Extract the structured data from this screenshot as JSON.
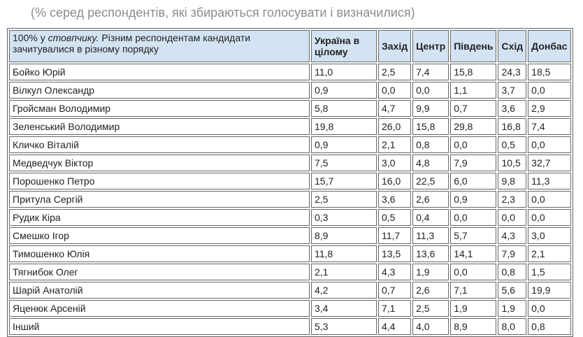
{
  "caption": "(% серед респондентів, які збираються голосувати і визначилися)",
  "table": {
    "header_note_plain": "100% у ",
    "header_note_italic": "стовпчику.",
    "header_note_rest": " Різним респондентам кандидати зачитувалися в різному порядку",
    "columns": [
      "Україна в цілому",
      "Захід",
      "Центр",
      "Південь",
      "Схід",
      "Донбас"
    ],
    "rows": [
      {
        "name": "Бойко Юрій",
        "values": [
          "11,0",
          "2,5",
          "7,4",
          "15,8",
          "24,3",
          "18,5"
        ]
      },
      {
        "name": "Вілкул Олександр",
        "values": [
          "0,9",
          "0,0",
          "0,0",
          "1,1",
          "3,7",
          "0,0"
        ]
      },
      {
        "name": "Гройсман Володимир",
        "values": [
          "5,8",
          "4,7",
          "9,9",
          "0,7",
          "3,6",
          "2,9"
        ]
      },
      {
        "name": "Зеленський Володимир",
        "values": [
          "19,8",
          "26,0",
          "15,8",
          "29,8",
          "16,8",
          "7,4"
        ]
      },
      {
        "name": "Кличко Віталій",
        "values": [
          "0,9",
          "2,1",
          "0,8",
          "0,0",
          "0,5",
          "0,0"
        ]
      },
      {
        "name": "Медведчук Віктор",
        "values": [
          "7,5",
          "3,0",
          "4,8",
          "7,9",
          "10,5",
          "32,7"
        ]
      },
      {
        "name": "Порошенко Петро",
        "values": [
          "15,7",
          "16,0",
          "22,5",
          "6,0",
          "9,8",
          "11,3"
        ]
      },
      {
        "name": "Притула Сергій",
        "values": [
          "2,5",
          "3,6",
          "2,6",
          "0,9",
          "2,3",
          "0,0"
        ]
      },
      {
        "name": "Рудик Кіра",
        "values": [
          "0,3",
          "0,5",
          "0,4",
          "0,0",
          "0,0",
          "0,0"
        ]
      },
      {
        "name": "Смешко Ігор",
        "values": [
          "8,9",
          "11,7",
          "11,3",
          "5,7",
          "4,3",
          "3,0"
        ]
      },
      {
        "name": "Тимошенко Юлія",
        "values": [
          "11,8",
          "13,5",
          "13,6",
          "14,1",
          "7,9",
          "2,1"
        ]
      },
      {
        "name": "Тягнибок Олег",
        "values": [
          "2,1",
          "4,3",
          "1,9",
          "0,0",
          "0,8",
          "1,5"
        ]
      },
      {
        "name": "Шарій Анатолій",
        "values": [
          "4,2",
          "0,7",
          "2,6",
          "7,1",
          "5,6",
          "19,9"
        ]
      },
      {
        "name": "Яценюк Арсеній",
        "values": [
          "3,4",
          "7,1",
          "2,5",
          "1,9",
          "1,9",
          "0,0"
        ]
      },
      {
        "name": "Інший",
        "values": [
          "5,3",
          "4,4",
          "4,0",
          "8,9",
          "8,0",
          "0,8"
        ]
      }
    ]
  }
}
